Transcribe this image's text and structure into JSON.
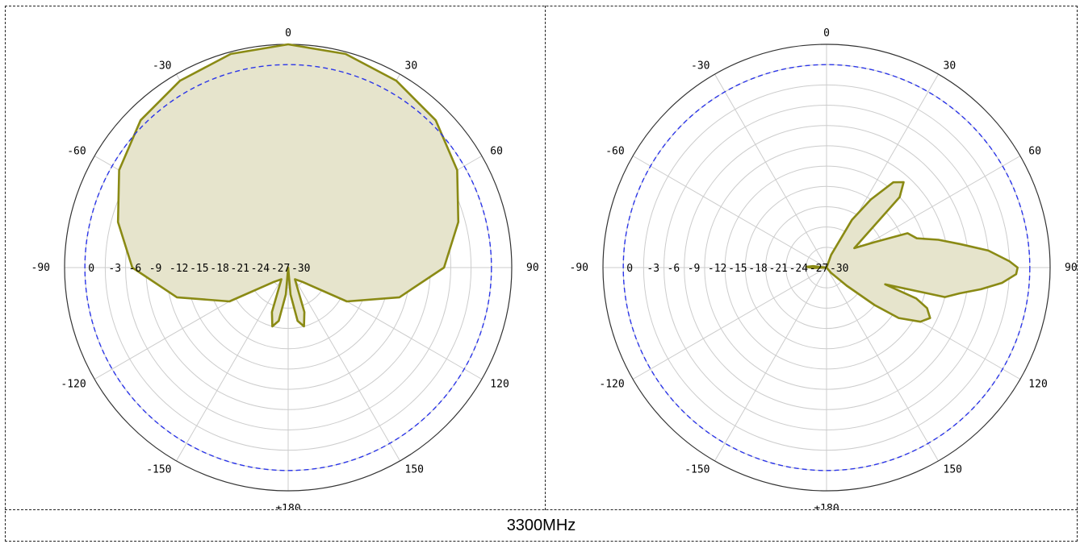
{
  "caption": "3300MHz",
  "colors": {
    "pattern_fill": "#e6e4cc",
    "pattern_stroke": "#8a8a14",
    "reference_ring": "#2b35e8",
    "grid": "#cccccc",
    "outer": "#333333"
  },
  "chart_data": [
    {
      "type": "polar",
      "angle_ticks": [
        "0",
        "30",
        "60",
        "90",
        "120",
        "150",
        "±180",
        "-150",
        "-120",
        "-90",
        "-60",
        "-30"
      ],
      "radial_ticks": [
        "0",
        "-3",
        "-6",
        "-9",
        "-12",
        "-15",
        "-18",
        "-21",
        "-24",
        "-27",
        "-30"
      ],
      "rlim_db": [
        -30,
        3
      ],
      "reference_ring_db": 0,
      "series": [
        {
          "angle_deg": [
            0,
            15,
            30,
            45,
            60,
            75,
            90,
            105,
            120,
            135,
            150,
            160,
            165,
            170,
            175,
            180,
            185,
            190,
            195,
            200,
            210,
            225,
            240,
            255,
            270,
            285,
            300,
            315,
            330,
            345
          ],
          "gain_db": [
            3.0,
            2.7,
            1.9,
            0.8,
            -1.2,
            -4.0,
            -7.0,
            -13.0,
            -20,
            -27,
            -28,
            -23,
            -21,
            -22,
            -26,
            -30,
            -26,
            -22,
            -21,
            -23,
            -28,
            -27,
            -20,
            -13.0,
            -7.0,
            -4.0,
            -1.2,
            0.8,
            1.9,
            2.7
          ]
        }
      ]
    },
    {
      "type": "polar",
      "angle_ticks": [
        "0",
        "30",
        "60",
        "90",
        "120",
        "150",
        "±180",
        "-150",
        "-120",
        "-90",
        "-60",
        "-30"
      ],
      "radial_ticks": [
        "0",
        "-3",
        "-6",
        "-9",
        "-12",
        "-15",
        "-18",
        "-21",
        "-24",
        "-27",
        "-30"
      ],
      "rlim_db": [
        -30,
        3
      ],
      "reference_ring_db": 0,
      "series": [
        {
          "angle_deg": [
            0,
            20,
            28,
            33,
            38,
            42,
            46,
            55,
            62,
            67,
            72,
            76,
            80,
            84,
            88,
            90,
            92,
            95,
            98,
            101,
            104,
            106,
            109,
            112,
            116,
            120,
            125,
            128,
            132,
            140,
            150,
            170,
            200,
            260,
            268,
            272,
            276,
            300,
            340
          ],
          "gain_db": [
            -30,
            -28,
            -22,
            -18,
            -14,
            -13,
            -15,
            -25,
            -22,
            -17,
            -16,
            -13,
            -10,
            -6,
            -3,
            -1.8,
            -2,
            -4,
            -7,
            -10,
            -12,
            -21,
            -16,
            -14,
            -13,
            -14,
            -17,
            -21,
            -26,
            -29,
            -30,
            -30,
            -30,
            -30,
            -28,
            -27,
            -28,
            -30,
            -30
          ]
        }
      ]
    }
  ]
}
